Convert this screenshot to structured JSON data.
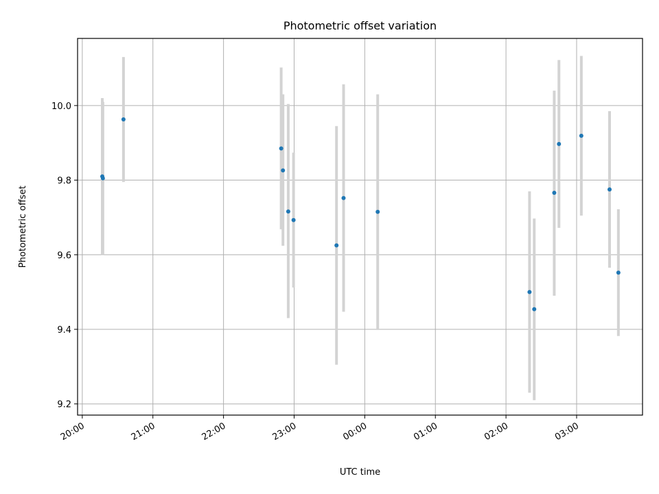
{
  "chart_data": {
    "type": "scatter",
    "title": "Photometric offset variation",
    "xlabel": "UTC time",
    "ylabel": "Photometric offset",
    "x_axis_type": "time",
    "xlim": [
      "2000-01-01T19:56:00",
      "2000-01-02T03:56:00"
    ],
    "ylim": [
      9.17,
      10.18
    ],
    "x_ticks": [
      {
        "t": "2000-01-01T20:00:00",
        "label": "20:00"
      },
      {
        "t": "2000-01-01T21:00:00",
        "label": "21:00"
      },
      {
        "t": "2000-01-01T22:00:00",
        "label": "22:00"
      },
      {
        "t": "2000-01-01T23:00:00",
        "label": "23:00"
      },
      {
        "t": "2000-01-02T00:00:00",
        "label": "00:00"
      },
      {
        "t": "2000-01-02T01:00:00",
        "label": "01:00"
      },
      {
        "t": "2000-01-02T02:00:00",
        "label": "02:00"
      },
      {
        "t": "2000-01-02T03:00:00",
        "label": "03:00"
      }
    ],
    "y_ticks": [
      9.2,
      9.4,
      9.6,
      9.8,
      10.0
    ],
    "y_tick_labels": [
      "9.2",
      "9.4",
      "9.6",
      "9.8",
      "10.0"
    ],
    "grid": true,
    "marker_color": "#1f77b4",
    "errorbar_color": "#d3d3d3",
    "points": [
      {
        "t": "2000-01-01T20:17:00",
        "y": 9.81,
        "ylow": 9.6,
        "yhigh": 10.02
      },
      {
        "t": "2000-01-01T20:17:30",
        "y": 9.805,
        "ylow": 9.6,
        "yhigh": 10.01
      },
      {
        "t": "2000-01-01T20:35:00",
        "y": 9.963,
        "ylow": 9.795,
        "yhigh": 10.13
      },
      {
        "t": "2000-01-01T22:49:00",
        "y": 9.885,
        "ylow": 9.668,
        "yhigh": 10.102
      },
      {
        "t": "2000-01-01T22:50:30",
        "y": 9.826,
        "ylow": 9.624,
        "yhigh": 10.03
      },
      {
        "t": "2000-01-01T22:55:00",
        "y": 9.716,
        "ylow": 9.43,
        "yhigh": 10.004
      },
      {
        "t": "2000-01-01T22:59:30",
        "y": 9.693,
        "ylow": 9.512,
        "yhigh": 9.874
      },
      {
        "t": "2000-01-01T23:36:00",
        "y": 9.625,
        "ylow": 9.305,
        "yhigh": 9.945
      },
      {
        "t": "2000-01-01T23:42:00",
        "y": 9.752,
        "ylow": 9.447,
        "yhigh": 10.057
      },
      {
        "t": "2000-01-02T00:11:00",
        "y": 9.715,
        "ylow": 9.4,
        "yhigh": 10.03
      },
      {
        "t": "2000-01-02T02:20:00",
        "y": 9.5,
        "ylow": 9.23,
        "yhigh": 9.77
      },
      {
        "t": "2000-01-02T02:24:00",
        "y": 9.454,
        "ylow": 9.21,
        "yhigh": 9.697
      },
      {
        "t": "2000-01-02T02:41:00",
        "y": 9.766,
        "ylow": 9.49,
        "yhigh": 10.04
      },
      {
        "t": "2000-01-02T02:45:00",
        "y": 9.897,
        "ylow": 9.672,
        "yhigh": 10.122
      },
      {
        "t": "2000-01-02T03:04:00",
        "y": 9.919,
        "ylow": 9.705,
        "yhigh": 10.133
      },
      {
        "t": "2000-01-02T03:28:00",
        "y": 9.775,
        "ylow": 9.565,
        "yhigh": 9.985
      },
      {
        "t": "2000-01-02T03:35:30",
        "y": 9.552,
        "ylow": 9.382,
        "yhigh": 9.722
      }
    ]
  }
}
